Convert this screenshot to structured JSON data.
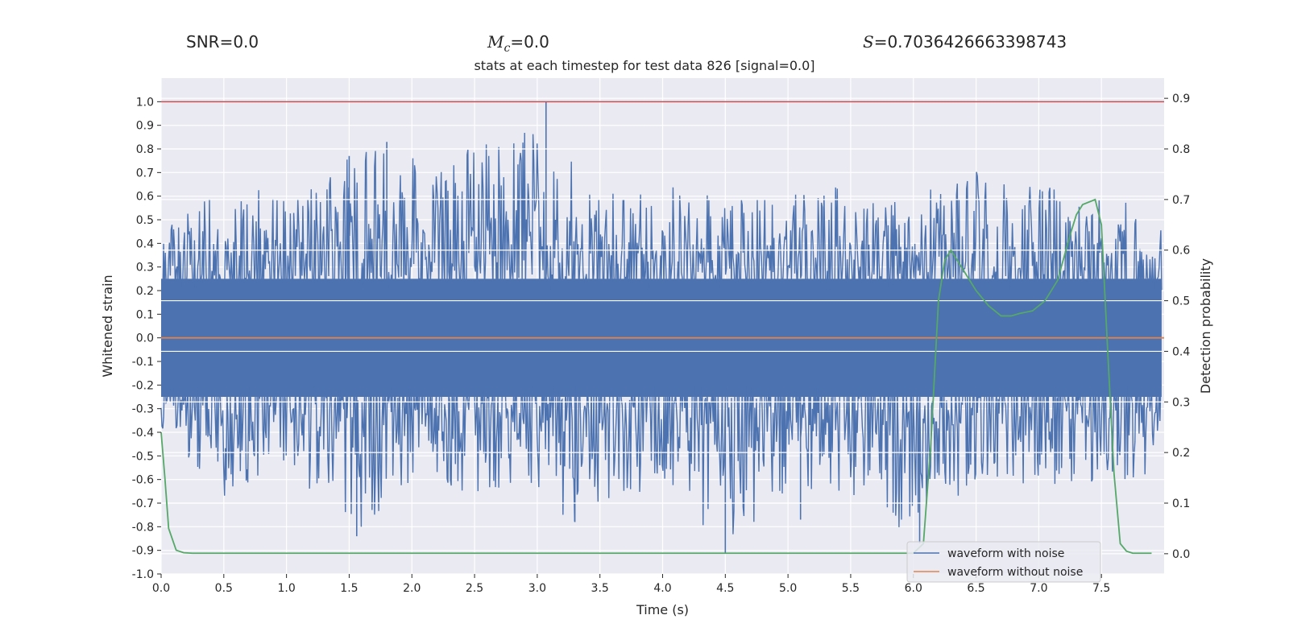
{
  "header": {
    "snr_label": "SNR",
    "snr_value": "=0.0",
    "mc_symbol": "M",
    "mc_sub": "c",
    "mc_value": "=0.0",
    "s_symbol": "S",
    "s_value": "=0.7036426663398743"
  },
  "chart_data": {
    "type": "line",
    "title": "stats at each timestep for test data 826 [signal=0.0]",
    "xlabel": "Time (s)",
    "ylabel": "Whitened strain",
    "y2label": "Detection probability",
    "xlim": [
      0.0,
      8.0
    ],
    "ylim": [
      -1.0,
      1.1
    ],
    "y2lim": [
      -0.04,
      0.94
    ],
    "x_ticks": [
      "0.0",
      "0.5",
      "1.0",
      "1.5",
      "2.0",
      "2.5",
      "3.0",
      "3.5",
      "4.0",
      "4.5",
      "5.0",
      "5.5",
      "6.0",
      "6.5",
      "7.0",
      "7.5"
    ],
    "y_ticks": [
      "-1.0",
      "-0.9",
      "-0.8",
      "-0.7",
      "-0.6",
      "-0.5",
      "-0.4",
      "-0.3",
      "-0.2",
      "-0.1",
      "0.0",
      "0.1",
      "0.2",
      "0.3",
      "0.4",
      "0.5",
      "0.6",
      "0.7",
      "0.8",
      "0.9",
      "1.0"
    ],
    "y2_ticks": [
      "0.0",
      "0.1",
      "0.2",
      "0.3",
      "0.4",
      "0.5",
      "0.6",
      "0.7",
      "0.8",
      "0.9"
    ],
    "grid": true,
    "legend_position": "lower-right",
    "threshold_line": {
      "y": 1.0,
      "color": "#c44e52"
    },
    "series": [
      {
        "name": "waveform with noise",
        "color": "#4c72b0",
        "axis": "left",
        "envelope_upper": [
          [
            0.0,
            0.47
          ],
          [
            0.5,
            0.66
          ],
          [
            1.0,
            0.62
          ],
          [
            1.5,
            0.77
          ],
          [
            1.8,
            0.83
          ],
          [
            2.2,
            0.72
          ],
          [
            3.07,
            1.0
          ],
          [
            3.5,
            0.6
          ],
          [
            4.0,
            0.66
          ],
          [
            4.5,
            0.58
          ],
          [
            5.0,
            0.62
          ],
          [
            5.5,
            0.67
          ],
          [
            6.0,
            0.6
          ],
          [
            6.5,
            0.72
          ],
          [
            7.0,
            0.64
          ],
          [
            7.5,
            0.62
          ],
          [
            7.95,
            0.57
          ]
        ],
        "envelope_lower": [
          [
            0.0,
            -0.45
          ],
          [
            0.5,
            -0.67
          ],
          [
            1.0,
            -0.55
          ],
          [
            1.56,
            -0.84
          ],
          [
            2.0,
            -0.62
          ],
          [
            3.0,
            -0.69
          ],
          [
            3.3,
            -0.78
          ],
          [
            4.0,
            -0.62
          ],
          [
            4.5,
            -0.91
          ],
          [
            5.0,
            -0.64
          ],
          [
            5.5,
            -0.68
          ],
          [
            6.05,
            -0.87
          ],
          [
            6.5,
            -0.64
          ],
          [
            7.0,
            -0.62
          ],
          [
            7.5,
            -0.67
          ],
          [
            7.95,
            -0.58
          ]
        ],
        "spikes": [
          [
            1.5,
            0.77
          ],
          [
            1.8,
            0.83
          ],
          [
            3.07,
            1.0
          ],
          [
            1.56,
            -0.84
          ],
          [
            3.3,
            -0.78
          ],
          [
            4.5,
            -0.91
          ],
          [
            5.1,
            -0.77
          ],
          [
            6.05,
            -0.87
          ]
        ]
      },
      {
        "name": "waveform without noise",
        "color": "#dd8452",
        "axis": "left",
        "x": [
          0.0,
          8.0
        ],
        "y": [
          0.0,
          0.0
        ]
      },
      {
        "name": "",
        "color": "#55a868",
        "axis": "right",
        "x": [
          0.0,
          0.03,
          0.06,
          0.12,
          0.18,
          0.25,
          0.5,
          1.0,
          2.0,
          3.0,
          4.0,
          5.0,
          5.5,
          6.0,
          6.08,
          6.14,
          6.2,
          6.25,
          6.3,
          6.4,
          6.5,
          6.6,
          6.7,
          6.78,
          6.85,
          6.95,
          7.05,
          7.15,
          7.25,
          7.3,
          7.35,
          7.45,
          7.5,
          7.55,
          7.6,
          7.65,
          7.7,
          7.75,
          7.8,
          7.9
        ],
        "y": [
          0.24,
          0.15,
          0.05,
          0.007,
          0.002,
          0.001,
          0.001,
          0.001,
          0.001,
          0.001,
          0.001,
          0.001,
          0.001,
          0.001,
          0.02,
          0.22,
          0.5,
          0.58,
          0.6,
          0.56,
          0.52,
          0.49,
          0.47,
          0.47,
          0.475,
          0.48,
          0.5,
          0.54,
          0.63,
          0.67,
          0.69,
          0.7,
          0.65,
          0.4,
          0.16,
          0.02,
          0.005,
          0.001,
          0.001,
          0.001
        ]
      }
    ]
  }
}
